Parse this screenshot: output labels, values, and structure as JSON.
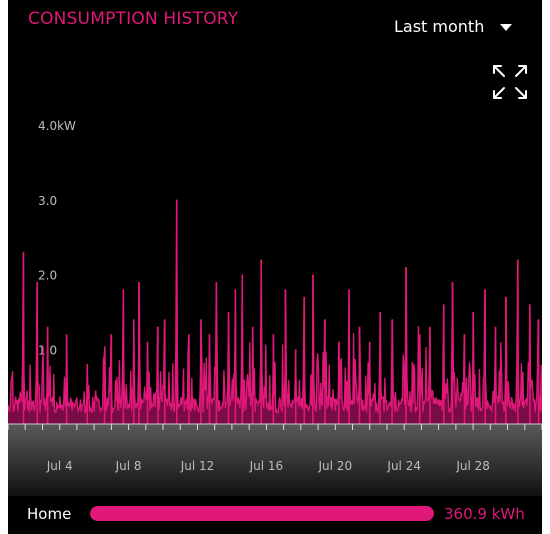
{
  "header": {
    "title": "CONSUMPTION HISTORY",
    "range_selected": "Last month",
    "expand_icon": "expand-arrows-icon"
  },
  "colors": {
    "accent": "#e0187a",
    "background": "#000000",
    "axis_text": "#bdbdbd"
  },
  "chart_data": {
    "type": "area",
    "ylabel": "",
    "y_unit": "kW",
    "ylim": [
      0,
      4.0
    ],
    "y_ticks": [
      {
        "value": 1.0,
        "label": "1.0"
      },
      {
        "value": 2.0,
        "label": "2.0"
      },
      {
        "value": 3.0,
        "label": "3.0"
      },
      {
        "value": 4.0,
        "label": "4.0kW"
      }
    ],
    "x_tick_labels": [
      "Jul 4",
      "Jul 8",
      "Jul 12",
      "Jul 16",
      "Jul 20",
      "Jul 24",
      "Jul 28"
    ],
    "x_range_days": [
      1,
      32
    ],
    "x_label_days": [
      4,
      8,
      12,
      16,
      20,
      24,
      28
    ],
    "peaks": [
      {
        "day": 1.9,
        "value": 2.3
      },
      {
        "day": 2.7,
        "value": 1.9
      },
      {
        "day": 3.3,
        "value": 1.3
      },
      {
        "day": 4.4,
        "value": 1.2
      },
      {
        "day": 5.6,
        "value": 0.8
      },
      {
        "day": 6.6,
        "value": 0.9
      },
      {
        "day": 7.0,
        "value": 1.2
      },
      {
        "day": 7.7,
        "value": 1.8
      },
      {
        "day": 8.3,
        "value": 1.4
      },
      {
        "day": 8.6,
        "value": 1.9
      },
      {
        "day": 9.1,
        "value": 1.1
      },
      {
        "day": 9.7,
        "value": 1.3
      },
      {
        "day": 10.1,
        "value": 1.4
      },
      {
        "day": 10.8,
        "value": 3.0
      },
      {
        "day": 11.5,
        "value": 1.2
      },
      {
        "day": 12.2,
        "value": 1.4
      },
      {
        "day": 12.7,
        "value": 1.2
      },
      {
        "day": 13.1,
        "value": 1.9
      },
      {
        "day": 13.8,
        "value": 1.5
      },
      {
        "day": 14.2,
        "value": 1.8
      },
      {
        "day": 14.6,
        "value": 2.0
      },
      {
        "day": 15.2,
        "value": 1.3
      },
      {
        "day": 15.7,
        "value": 2.2
      },
      {
        "day": 16.4,
        "value": 1.2
      },
      {
        "day": 17.1,
        "value": 1.8
      },
      {
        "day": 17.7,
        "value": 1.0
      },
      {
        "day": 18.2,
        "value": 1.7
      },
      {
        "day": 18.7,
        "value": 2.0
      },
      {
        "day": 19.4,
        "value": 1.4
      },
      {
        "day": 20.2,
        "value": 1.1
      },
      {
        "day": 20.8,
        "value": 1.8
      },
      {
        "day": 21.4,
        "value": 1.3
      },
      {
        "day": 22.0,
        "value": 1.1
      },
      {
        "day": 22.6,
        "value": 1.5
      },
      {
        "day": 23.3,
        "value": 1.4
      },
      {
        "day": 24.1,
        "value": 2.1
      },
      {
        "day": 24.9,
        "value": 1.2
      },
      {
        "day": 25.5,
        "value": 1.3
      },
      {
        "day": 26.3,
        "value": 1.6
      },
      {
        "day": 26.8,
        "value": 1.9
      },
      {
        "day": 27.5,
        "value": 1.2
      },
      {
        "day": 28.0,
        "value": 1.5
      },
      {
        "day": 28.7,
        "value": 1.8
      },
      {
        "day": 29.3,
        "value": 1.3
      },
      {
        "day": 29.9,
        "value": 1.7
      },
      {
        "day": 30.6,
        "value": 2.2
      },
      {
        "day": 31.3,
        "value": 1.6
      },
      {
        "day": 31.8,
        "value": 1.4
      }
    ]
  },
  "footer": {
    "label": "Home",
    "value": "360.9 kWh",
    "share": 1.0
  }
}
